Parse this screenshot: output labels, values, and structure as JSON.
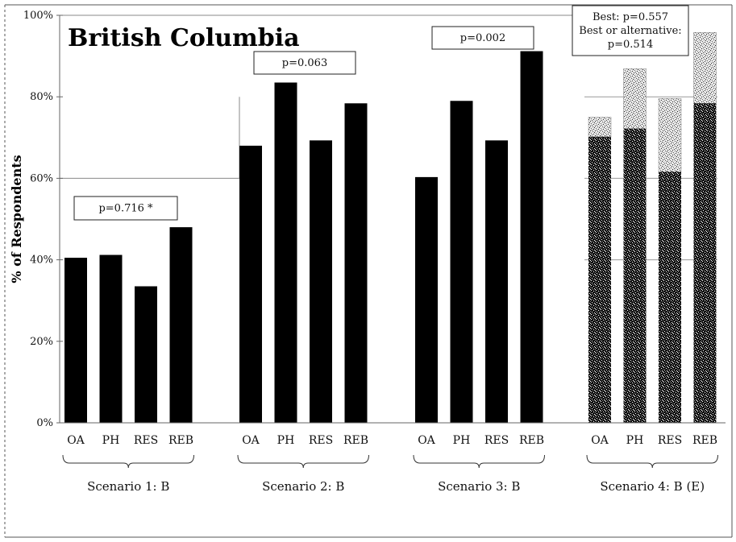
{
  "chart_data": {
    "type": "bar",
    "title": "British Columbia",
    "ylabel": "% of Respondents",
    "ylim": [
      0,
      100
    ],
    "yticks": [
      "0%",
      "20%",
      "40%",
      "60%",
      "80%",
      "100%"
    ],
    "categories": [
      "OA",
      "PH",
      "RES",
      "REB"
    ],
    "groups": [
      {
        "label": "Scenario 1: B",
        "annotation": "p=0.716 *",
        "values": [
          40.5,
          41.2,
          33.5,
          48
        ]
      },
      {
        "label": "Scenario 2: B",
        "annotation": "p=0.063",
        "values": [
          68,
          83.5,
          69.3,
          78.4
        ]
      },
      {
        "label": "Scenario 3: B",
        "annotation": "p=0.002",
        "values": [
          60.3,
          79,
          69.3,
          91.2
        ]
      },
      {
        "label": "Scenario 4: B (E)",
        "annotation": [
          "Best: p=0.557",
          "Best or alternative:",
          "p=0.514"
        ],
        "values": [
          70.2,
          72.2,
          61.6,
          78.4
        ],
        "values_best_or_alternative": [
          75,
          86.9,
          79.6,
          95.8
        ]
      }
    ],
    "colors": {
      "bar": "#000000",
      "speckle_dark": "#1a1a1a",
      "speckle_light": "#bdbdbd"
    }
  }
}
